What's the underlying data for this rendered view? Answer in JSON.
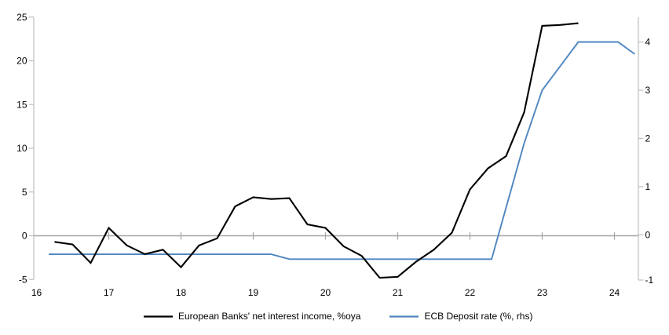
{
  "chart_data": {
    "type": "line",
    "title": "",
    "xlabel": "",
    "ylabel_left": "",
    "ylabel_right": "",
    "grid": false,
    "zero_line": true,
    "legend_position": "bottom",
    "x_axis": {
      "labels": [
        "16",
        "17",
        "18",
        "19",
        "20",
        "21",
        "22",
        "23",
        "24"
      ],
      "tick_years": [
        16,
        17,
        18,
        19,
        20,
        21,
        22,
        23,
        24
      ],
      "range": [
        16,
        24.35
      ]
    },
    "left_axis": {
      "tick_labels": [
        "25",
        "20",
        "15",
        "10",
        "5",
        "0",
        "-5"
      ],
      "ticks": [
        25,
        20,
        15,
        10,
        5,
        0,
        -5
      ],
      "range": [
        -5,
        25
      ]
    },
    "right_axis": {
      "tick_labels": [
        "4",
        "3",
        "2",
        "1",
        "0",
        "-1"
      ],
      "ticks": [
        4,
        3,
        2,
        1,
        0,
        -1
      ],
      "range": [
        -1,
        4.5
      ]
    },
    "series": [
      {
        "name": "European Banks' net interest income, %oya",
        "axis": "left",
        "color": "#000000",
        "x": [
          16.25,
          16.5,
          16.75,
          17.0,
          17.25,
          17.5,
          17.75,
          18.0,
          18.25,
          18.5,
          18.75,
          19.0,
          19.25,
          19.5,
          19.75,
          20.0,
          20.25,
          20.5,
          20.75,
          21.0,
          21.25,
          21.5,
          21.75,
          22.0,
          22.25,
          22.5,
          22.75,
          23.0,
          23.25,
          23.5
        ],
        "values": [
          -0.7,
          -1.0,
          -3.1,
          0.9,
          -1.1,
          -2.1,
          -1.6,
          -3.6,
          -1.1,
          -0.3,
          3.35,
          4.4,
          4.2,
          4.3,
          1.3,
          0.9,
          -1.2,
          -2.3,
          -4.8,
          -4.7,
          -3.0,
          -1.6,
          0.35,
          5.3,
          7.7,
          9.1,
          14.1,
          24.0,
          24.1,
          24.3
        ]
      },
      {
        "name": "ECB Deposit rate (%, rhs)",
        "axis": "right",
        "color": "#4E86C0",
        "x": [
          16.17,
          19.25,
          19.5,
          22.3,
          22.75,
          23.0,
          23.25,
          23.5,
          24.05,
          24.28
        ],
        "values": [
          -0.4,
          -0.4,
          -0.5,
          -0.5,
          1.9,
          3.0,
          3.5,
          4.0,
          4.0,
          3.75
        ]
      }
    ]
  },
  "colors": {
    "zero_line": "#A6A6A6",
    "axis_line": "#BFBFBF",
    "text": "#000000",
    "background": "#FFFFFF"
  }
}
